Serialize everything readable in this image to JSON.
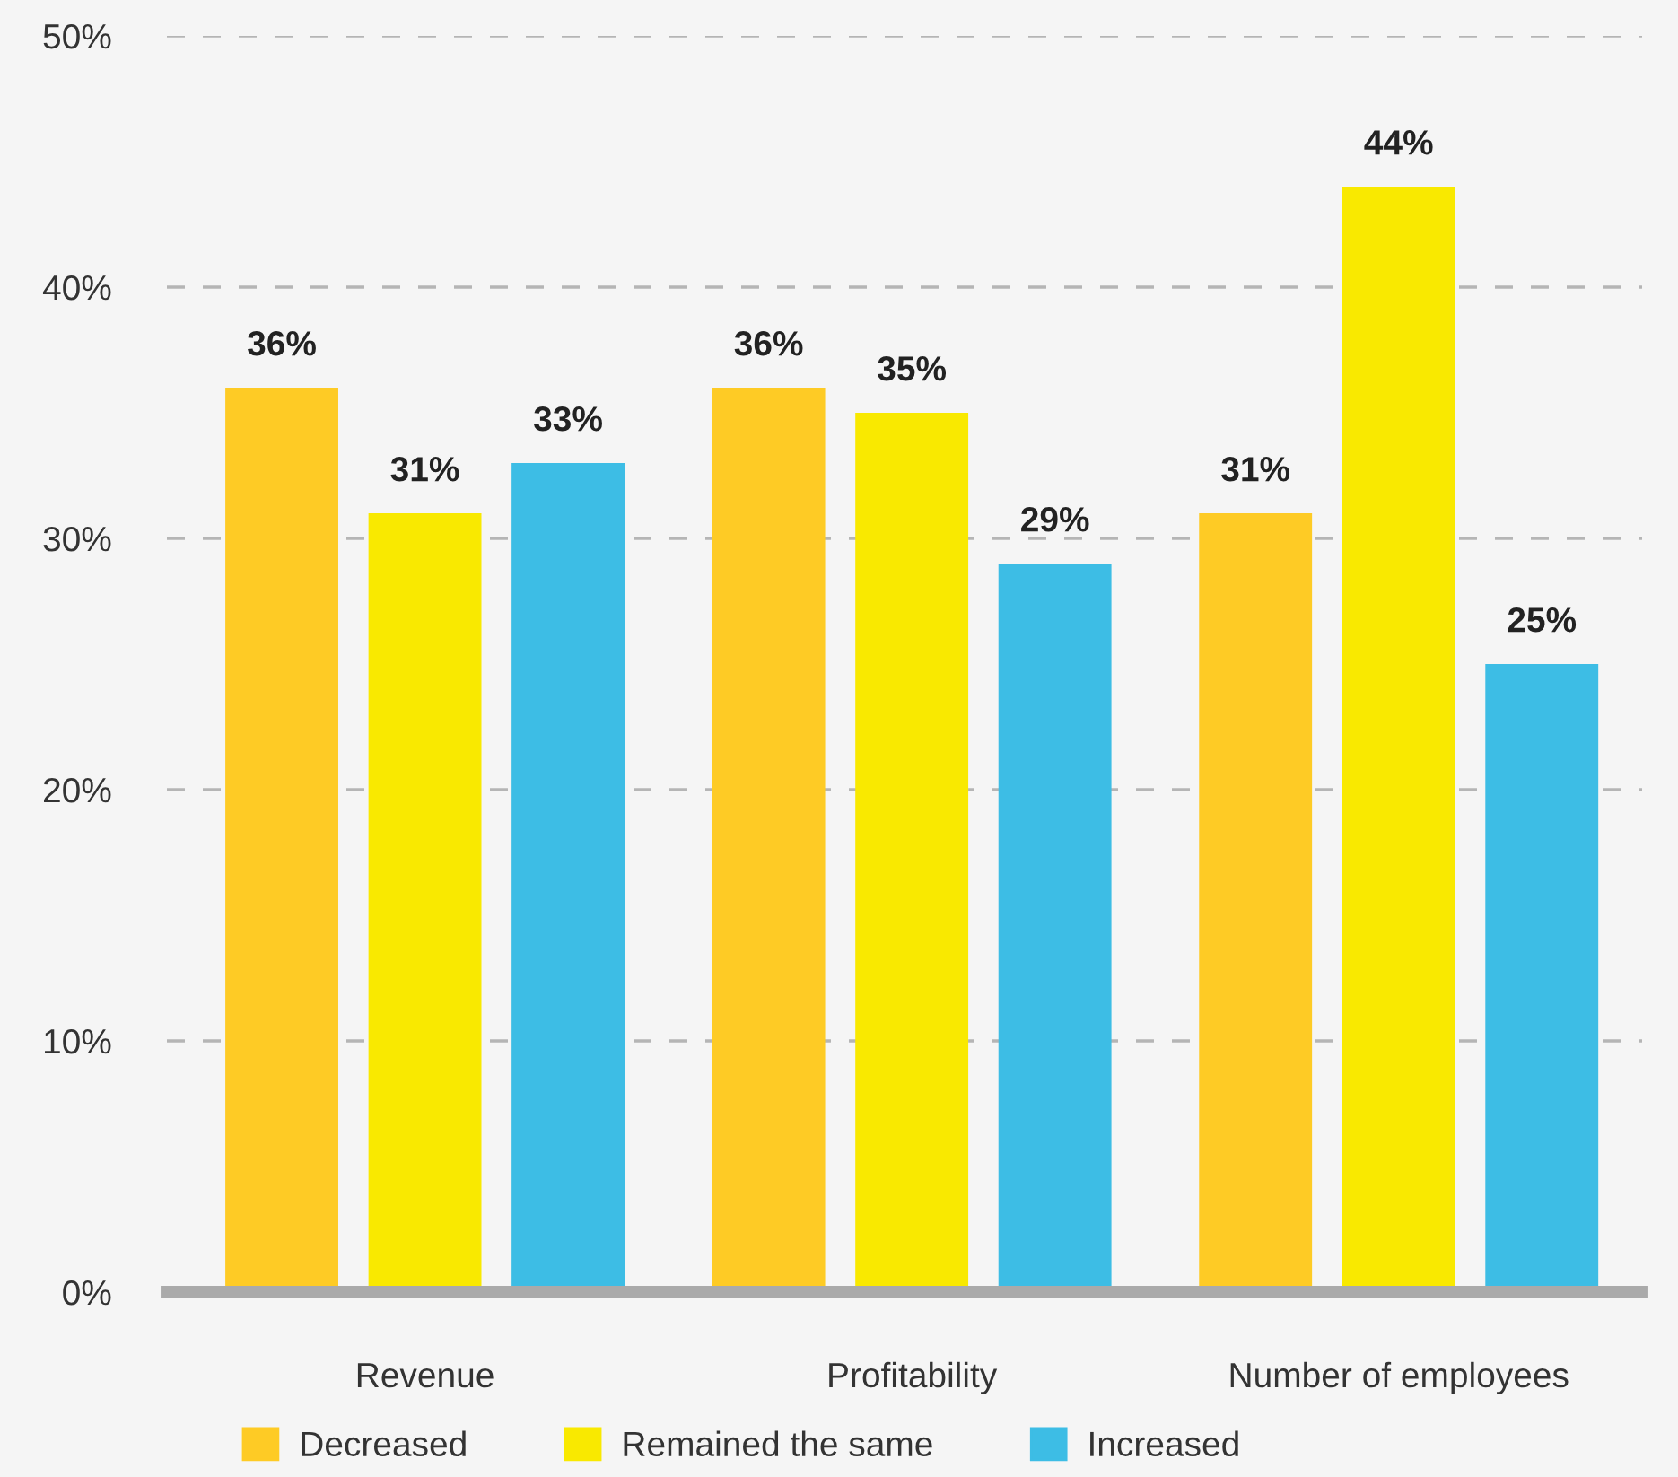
{
  "chart_data": {
    "type": "bar",
    "categories": [
      "Revenue",
      "Profitability",
      "Number of employees"
    ],
    "series": [
      {
        "name": "Decreased",
        "color": "#fecb25",
        "values": [
          36,
          36,
          31
        ],
        "value_labels": [
          "36%",
          "36%",
          "31%"
        ]
      },
      {
        "name": "Remained the same",
        "color": "#f9e900",
        "values": [
          31,
          35,
          44
        ],
        "value_labels": [
          "31%",
          "35%",
          "44%"
        ]
      },
      {
        "name": "Increased",
        "color": "#3dbde5",
        "values": [
          33,
          29,
          25
        ],
        "value_labels": [
          "33%",
          "29%",
          "25%"
        ]
      }
    ],
    "ylim": [
      0,
      50
    ],
    "yticks": [
      {
        "value": 0,
        "label": "0%"
      },
      {
        "value": 10,
        "label": "10%"
      },
      {
        "value": 20,
        "label": "20%"
      },
      {
        "value": 30,
        "label": "30%"
      },
      {
        "value": 40,
        "label": "40%"
      },
      {
        "value": 50,
        "label": "50%"
      }
    ],
    "grid": "y",
    "line_style": "dashed",
    "legend": "bottom"
  }
}
